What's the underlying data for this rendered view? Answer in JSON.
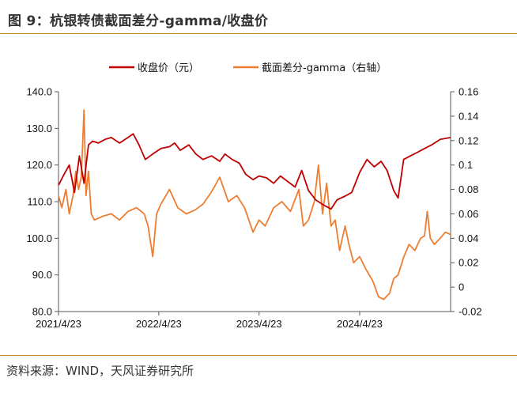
{
  "header": {
    "title": "图 9：杭银转债截面差分-gamma/收盘价"
  },
  "footer": {
    "source": "资料来源：WIND，天风证券研究所"
  },
  "colors": {
    "series_close": "#c00000",
    "series_gamma": "#ed7d31",
    "rule": "#c0862d"
  },
  "chart_data": {
    "type": "line",
    "legend_position": "top",
    "grid": false,
    "x_ticks": [
      "2021/4/23",
      "2022/4/23",
      "2023/4/23",
      "2024/4/23"
    ],
    "x_range": [
      "2021/4/23",
      "2025/3/20"
    ],
    "y_left": {
      "ticks": [
        "140.0",
        "130.0",
        "120.0",
        "110.0",
        "100.0",
        "90.0",
        "80.0"
      ],
      "range": [
        80,
        140
      ]
    },
    "y_right": {
      "ticks": [
        "0.16",
        "0.14",
        "0.12",
        "0.1",
        "0.08",
        "0.06",
        "0.04",
        "0.02",
        "0",
        "-0.02"
      ],
      "range": [
        -0.02,
        0.16
      ]
    },
    "series": [
      {
        "name": "收盘价（元）",
        "axis": "left",
        "points": [
          [
            "2021/4/23",
            114.5
          ],
          [
            "2021/5/10",
            117.0
          ],
          [
            "2021/6/1",
            120.0
          ],
          [
            "2021/6/20",
            112.5
          ],
          [
            "2021/7/8",
            122.5
          ],
          [
            "2021/7/25",
            115.0
          ],
          [
            "2021/8/10",
            125.5
          ],
          [
            "2021/8/25",
            126.5
          ],
          [
            "2021/9/15",
            126.0
          ],
          [
            "2021/10/10",
            127.0
          ],
          [
            "2021/11/1",
            127.5
          ],
          [
            "2021/12/1",
            126.0
          ],
          [
            "2022/1/1",
            127.5
          ],
          [
            "2022/1/20",
            128.5
          ],
          [
            "2022/2/10",
            125.5
          ],
          [
            "2022/3/5",
            121.5
          ],
          [
            "2022/4/1",
            123.0
          ],
          [
            "2022/5/1",
            124.5
          ],
          [
            "2022/6/1",
            125.0
          ],
          [
            "2022/6/20",
            126.0
          ],
          [
            "2022/7/10",
            124.0
          ],
          [
            "2022/8/10",
            125.5
          ],
          [
            "2022/9/5",
            123.0
          ],
          [
            "2022/10/1",
            121.5
          ],
          [
            "2022/11/1",
            122.5
          ],
          [
            "2022/12/1",
            121.0
          ],
          [
            "2022/12/20",
            123.0
          ],
          [
            "2023/1/15",
            121.5
          ],
          [
            "2023/2/10",
            120.5
          ],
          [
            "2023/3/5",
            117.5
          ],
          [
            "2023/4/1",
            116.0
          ],
          [
            "2023/4/23",
            117.0
          ],
          [
            "2023/5/20",
            116.5
          ],
          [
            "2023/6/15",
            115.0
          ],
          [
            "2023/7/10",
            117.0
          ],
          [
            "2023/8/5",
            115.5
          ],
          [
            "2023/9/1",
            114.0
          ],
          [
            "2023/9/25",
            118.5
          ],
          [
            "2023/10/20",
            113.0
          ],
          [
            "2023/11/15",
            110.5
          ],
          [
            "2023/12/15",
            109.0
          ],
          [
            "2024/1/10",
            108.0
          ],
          [
            "2024/2/1",
            110.5
          ],
          [
            "2024/3/1",
            111.5
          ],
          [
            "2024/3/25",
            112.5
          ],
          [
            "2024/4/23",
            118.0
          ],
          [
            "2024/5/20",
            121.5
          ],
          [
            "2024/6/15",
            119.5
          ],
          [
            "2024/7/10",
            121.0
          ],
          [
            "2024/8/1",
            118.5
          ],
          [
            "2024/8/25",
            113.0
          ],
          [
            "2024/9/10",
            111.0
          ],
          [
            "2024/9/30",
            121.5
          ],
          [
            "2024/10/25",
            122.5
          ],
          [
            "2024/11/20",
            123.5
          ],
          [
            "2024/12/15",
            124.5
          ],
          [
            "2025/1/10",
            125.5
          ],
          [
            "2025/2/10",
            127.0
          ],
          [
            "2025/3/20",
            127.5
          ]
        ]
      },
      {
        "name": "截面差分-gamma（右轴）",
        "axis": "right",
        "points": [
          [
            "2021/4/23",
            0.075
          ],
          [
            "2021/5/5",
            0.065
          ],
          [
            "2021/5/20",
            0.08
          ],
          [
            "2021/6/1",
            0.06
          ],
          [
            "2021/6/15",
            0.075
          ],
          [
            "2021/6/25",
            0.095
          ],
          [
            "2021/7/5",
            0.08
          ],
          [
            "2021/7/15",
            0.09
          ],
          [
            "2021/7/25",
            0.145
          ],
          [
            "2021/8/1",
            0.075
          ],
          [
            "2021/8/10",
            0.095
          ],
          [
            "2021/8/20",
            0.06
          ],
          [
            "2021/9/1",
            0.055
          ],
          [
            "2021/10/1",
            0.058
          ],
          [
            "2021/11/1",
            0.06
          ],
          [
            "2021/12/1",
            0.055
          ],
          [
            "2022/1/1",
            0.062
          ],
          [
            "2022/2/1",
            0.065
          ],
          [
            "2022/3/1",
            0.06
          ],
          [
            "2022/3/15",
            0.05
          ],
          [
            "2022/4/1",
            0.025
          ],
          [
            "2022/4/15",
            0.06
          ],
          [
            "2022/5/1",
            0.068
          ],
          [
            "2022/6/1",
            0.08
          ],
          [
            "2022/7/1",
            0.065
          ],
          [
            "2022/8/1",
            0.06
          ],
          [
            "2022/9/1",
            0.063
          ],
          [
            "2022/10/1",
            0.068
          ],
          [
            "2022/11/1",
            0.078
          ],
          [
            "2022/12/1",
            0.09
          ],
          [
            "2023/1/1",
            0.07
          ],
          [
            "2023/2/1",
            0.075
          ],
          [
            "2023/3/1",
            0.065
          ],
          [
            "2023/4/1",
            0.045
          ],
          [
            "2023/4/23",
            0.055
          ],
          [
            "2023/5/15",
            0.05
          ],
          [
            "2023/6/15",
            0.065
          ],
          [
            "2023/7/15",
            0.07
          ],
          [
            "2023/8/15",
            0.062
          ],
          [
            "2023/9/15",
            0.08
          ],
          [
            "2023/10/1",
            0.05
          ],
          [
            "2023/10/20",
            0.055
          ],
          [
            "2023/11/10",
            0.07
          ],
          [
            "2023/11/25",
            0.1
          ],
          [
            "2023/12/10",
            0.06
          ],
          [
            "2023/12/25",
            0.085
          ],
          [
            "2024/1/10",
            0.05
          ],
          [
            "2024/1/25",
            0.055
          ],
          [
            "2024/2/10",
            0.03
          ],
          [
            "2024/3/1",
            0.05
          ],
          [
            "2024/3/15",
            0.035
          ],
          [
            "2024/4/1",
            0.02
          ],
          [
            "2024/4/23",
            0.025
          ],
          [
            "2024/5/15",
            0.015
          ],
          [
            "2024/6/10",
            0.005
          ],
          [
            "2024/7/1",
            -0.008
          ],
          [
            "2024/7/20",
            -0.01
          ],
          [
            "2024/8/10",
            -0.005
          ],
          [
            "2024/8/25",
            0.007
          ],
          [
            "2024/9/10",
            0.01
          ],
          [
            "2024/10/1",
            0.025
          ],
          [
            "2024/10/20",
            0.035
          ],
          [
            "2024/11/10",
            0.03
          ],
          [
            "2024/12/1",
            0.04
          ],
          [
            "2024/12/15",
            0.042
          ],
          [
            "2024/12/25",
            0.062
          ],
          [
            "2025/1/5",
            0.04
          ],
          [
            "2025/1/20",
            0.035
          ],
          [
            "2025/2/10",
            0.04
          ],
          [
            "2025/3/1",
            0.045
          ],
          [
            "2025/3/20",
            0.043
          ]
        ]
      }
    ]
  }
}
